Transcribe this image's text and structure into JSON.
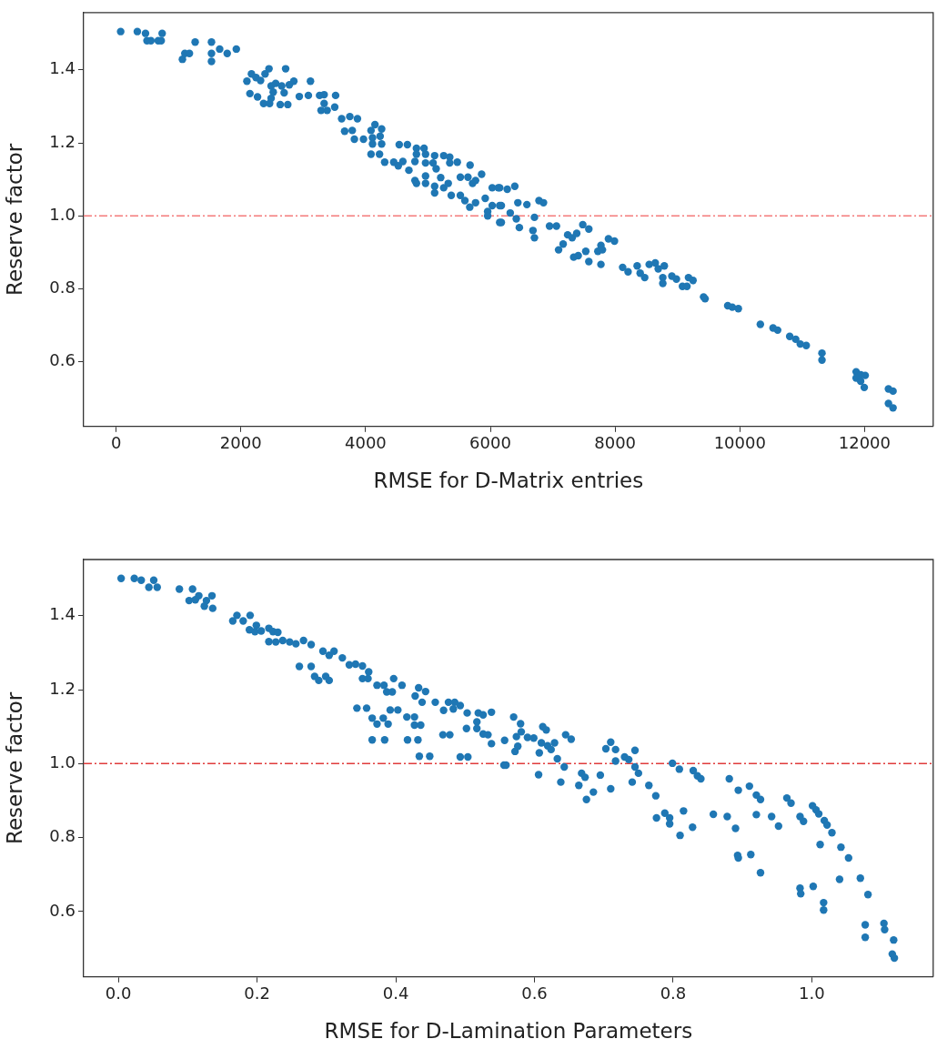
{
  "chart_data": [
    {
      "type": "scatter",
      "xlabel": "RMSE for D-Matrix entries",
      "ylabel": "Reserve factor",
      "marker": "circle",
      "color": "#1f77b4",
      "xlim": [
        -520,
        13100
      ],
      "ylim": [
        0.423,
        1.557
      ],
      "xticks": [
        0,
        2000,
        4000,
        6000,
        8000,
        10000,
        12000
      ],
      "yticks": [
        {
          "value": 0.6,
          "label": "0.6"
        },
        {
          "value": 0.8,
          "label": "0.8"
        },
        {
          "value": 1.0,
          "label": "1.0"
        },
        {
          "value": 1.2,
          "label": "1.2"
        },
        {
          "value": 1.4,
          "label": "1.4"
        }
      ],
      "ref_lines": [
        {
          "axis": "y",
          "value": 1.0,
          "color": "#f47a7a",
          "line_style": "dashed"
        }
      ],
      "x": [
        73,
        340,
        471,
        495,
        558,
        675,
        723,
        738,
        1267,
        1529,
        1529,
        1529,
        1063,
        1102,
        1175,
        1660,
        1781,
        1927,
        2097,
        2170,
        2243,
        2316,
        2388,
        2451,
        2718,
        2849,
        3116,
        2145,
        2267,
        2364,
        2485,
        2519,
        2485,
        2558,
        2655,
        2777,
        2694,
        2461,
        2631,
        2752,
        2937,
        3082,
        3262,
        3335,
        3519,
        3286,
        3383,
        3335,
        3505,
        3616,
        3747,
        3869,
        3664,
        3786,
        3820,
        3966,
        4087,
        4150,
        4257,
        4111,
        4233,
        4111,
        4257,
        4087,
        4223,
        4306,
        4451,
        4524,
        4597,
        4694,
        4539,
        4670,
        4815,
        4937,
        4815,
        4961,
        4791,
        4961,
        4791,
        4815,
        4961,
        4961,
        5082,
        5107,
        5131,
        5204,
        5252,
        5349,
        5349,
        5470,
        5107,
        5107,
        5252,
        5325,
        5373,
        5519,
        5519,
        5641,
        5675,
        5592,
        5670,
        5763,
        5715,
        5763,
        5860,
        5918,
        5957,
        6030,
        6030,
        6127,
        6176,
        6176,
        5957,
        6150,
        6271,
        6392,
        6150,
        6319,
        6416,
        6150,
        6465,
        6441,
        6586,
        6707,
        6683,
        6707,
        6780,
        6852,
        6949,
        7060,
        7094,
        7167,
        7240,
        7312,
        7336,
        7409,
        7385,
        7482,
        7579,
        7530,
        7579,
        7724,
        7773,
        7797,
        7773,
        7894,
        7990,
        8121,
        8208,
        8354,
        8402,
        8475,
        8547,
        8644,
        8692,
        8789,
        8765,
        8765,
        8910,
        8983,
        9080,
        9152,
        9177,
        9249,
        9419,
        9443,
        9806,
        9879,
        9976,
        10329,
        10533,
        10606,
        10800,
        10896,
        10969,
        11065,
        11317,
        11317,
        11865,
        11937,
        12010,
        11865,
        11937,
        11995,
        12383,
        12456,
        12383,
        12456
      ],
      "values": [
        1.505,
        1.505,
        1.5,
        1.48,
        1.48,
        1.48,
        1.48,
        1.5,
        1.476,
        1.476,
        1.445,
        1.423,
        1.429,
        1.445,
        1.445,
        1.457,
        1.445,
        1.457,
        1.369,
        1.389,
        1.379,
        1.371,
        1.389,
        1.403,
        1.403,
        1.369,
        1.369,
        1.335,
        1.326,
        1.308,
        1.322,
        1.339,
        1.356,
        1.363,
        1.356,
        1.359,
        1.337,
        1.308,
        1.305,
        1.305,
        1.327,
        1.33,
        1.33,
        1.332,
        1.33,
        1.289,
        1.289,
        1.308,
        1.298,
        1.266,
        1.272,
        1.266,
        1.232,
        1.234,
        1.21,
        1.21,
        1.234,
        1.25,
        1.238,
        1.214,
        1.218,
        1.197,
        1.197,
        1.169,
        1.169,
        1.147,
        1.147,
        1.137,
        1.149,
        1.125,
        1.195,
        1.195,
        1.185,
        1.185,
        1.169,
        1.169,
        1.149,
        1.145,
        1.097,
        1.089,
        1.109,
        1.089,
        1.145,
        1.165,
        1.129,
        1.105,
        1.165,
        1.161,
        1.145,
        1.147,
        1.081,
        1.063,
        1.077,
        1.089,
        1.056,
        1.056,
        1.106,
        1.106,
        1.139,
        1.042,
        1.024,
        1.036,
        1.089,
        1.097,
        1.114,
        1.048,
        1.012,
        1.077,
        1.028,
        1.077,
        1.028,
        0.982,
        1.0,
        1.077,
        1.073,
        1.081,
        1.028,
        1.008,
        0.992,
        0.982,
        0.968,
        1.036,
        1.031,
        0.996,
        0.96,
        0.94,
        1.042,
        1.036,
        0.972,
        0.972,
        0.907,
        0.923,
        0.948,
        0.94,
        0.887,
        0.891,
        0.952,
        0.976,
        0.964,
        0.903,
        0.875,
        0.903,
        0.919,
        0.907,
        0.867,
        0.937,
        0.931,
        0.859,
        0.847,
        0.863,
        0.843,
        0.831,
        0.867,
        0.871,
        0.855,
        0.863,
        0.831,
        0.815,
        0.835,
        0.827,
        0.807,
        0.807,
        0.831,
        0.823,
        0.778,
        0.773,
        0.754,
        0.75,
        0.746,
        0.703,
        0.693,
        0.687,
        0.67,
        0.662,
        0.649,
        0.645,
        0.624,
        0.605,
        0.573,
        0.565,
        0.563,
        0.556,
        0.547,
        0.53,
        0.526,
        0.52,
        0.486,
        0.474
      ]
    },
    {
      "type": "scatter",
      "xlabel": "RMSE for D-Lamination Parameters",
      "ylabel": "Reserve factor",
      "marker": "circle",
      "color": "#1f77b4",
      "xlim": [
        -0.05,
        1.175
      ],
      "ylim": [
        0.423,
        1.552
      ],
      "xticks": [
        {
          "value": 0,
          "label": "0.0"
        },
        {
          "value": 0.2,
          "label": "0.2"
        },
        {
          "value": 0.4,
          "label": "0.4"
        },
        {
          "value": 0.6,
          "label": "0.6"
        },
        {
          "value": 0.8,
          "label": "0.8"
        },
        {
          "value": 1.0,
          "label": "1.0"
        }
      ],
      "yticks": [
        {
          "value": 0.6,
          "label": "0.6"
        },
        {
          "value": 0.8,
          "label": "0.8"
        },
        {
          "value": 1.0,
          "label": "1.0"
        },
        {
          "value": 1.2,
          "label": "1.2"
        },
        {
          "value": 1.4,
          "label": "1.4"
        }
      ],
      "ref_lines": [
        {
          "axis": "y",
          "value": 1.0,
          "color": "#e03c3c",
          "line_style": "dashed"
        }
      ],
      "x": [
        0.004,
        0.023,
        0.033,
        0.044,
        0.051,
        0.056,
        0.088,
        0.107,
        0.102,
        0.111,
        0.116,
        0.127,
        0.124,
        0.135,
        0.136,
        0.165,
        0.171,
        0.18,
        0.19,
        0.189,
        0.199,
        0.197,
        0.206,
        0.217,
        0.223,
        0.23,
        0.217,
        0.227,
        0.237,
        0.247,
        0.256,
        0.267,
        0.278,
        0.295,
        0.304,
        0.311,
        0.323,
        0.333,
        0.342,
        0.352,
        0.361,
        0.352,
        0.36,
        0.373,
        0.383,
        0.387,
        0.395,
        0.397,
        0.409,
        0.428,
        0.433,
        0.443,
        0.438,
        0.457,
        0.469,
        0.476,
        0.485,
        0.483,
        0.493,
        0.503,
        0.519,
        0.526,
        0.538,
        0.517,
        0.502,
        0.517,
        0.526,
        0.533,
        0.538,
        0.557,
        0.556,
        0.261,
        0.278,
        0.283,
        0.289,
        0.299,
        0.304,
        0.344,
        0.358,
        0.366,
        0.373,
        0.382,
        0.389,
        0.392,
        0.403,
        0.416,
        0.427,
        0.427,
        0.436,
        0.366,
        0.384,
        0.417,
        0.432,
        0.434,
        0.449,
        0.468,
        0.478,
        0.493,
        0.504,
        0.57,
        0.58,
        0.574,
        0.581,
        0.572,
        0.576,
        0.59,
        0.599,
        0.559,
        0.606,
        0.612,
        0.617,
        0.61,
        0.607,
        0.619,
        0.629,
        0.624,
        0.633,
        0.645,
        0.653,
        0.638,
        0.643,
        0.664,
        0.668,
        0.673,
        0.675,
        0.685,
        0.695,
        0.703,
        0.71,
        0.717,
        0.717,
        0.71,
        0.73,
        0.736,
        0.745,
        0.745,
        0.741,
        0.75,
        0.765,
        0.775,
        0.776,
        0.788,
        0.795,
        0.795,
        0.799,
        0.809,
        0.81,
        0.815,
        0.829,
        0.835,
        0.84,
        0.828,
        0.858,
        0.878,
        0.881,
        0.89,
        0.894,
        0.893,
        0.894,
        0.91,
        0.912,
        0.92,
        0.926,
        0.92,
        0.926,
        0.942,
        0.952,
        0.964,
        0.97,
        0.983,
        0.988,
        0.983,
        0.984,
        1.001,
        1.006,
        1.01,
        1.002,
        1.012,
        1.017,
        1.017,
        1.018,
        1.022,
        1.029,
        1.042,
        1.04,
        1.053,
        1.07,
        1.081,
        1.077,
        1.077,
        1.104,
        1.105,
        1.118,
        1.116,
        1.119
      ],
      "values": [
        1.501,
        1.501,
        1.496,
        1.477,
        1.496,
        1.477,
        1.472,
        1.472,
        1.441,
        1.443,
        1.454,
        1.441,
        1.426,
        1.454,
        1.42,
        1.386,
        1.401,
        1.386,
        1.401,
        1.362,
        1.374,
        1.357,
        1.359,
        1.366,
        1.357,
        1.355,
        1.33,
        1.329,
        1.333,
        1.329,
        1.324,
        1.333,
        1.322,
        1.304,
        1.293,
        1.304,
        1.286,
        1.267,
        1.269,
        1.264,
        1.248,
        1.23,
        1.23,
        1.212,
        1.212,
        1.194,
        1.194,
        1.23,
        1.212,
        1.183,
        1.205,
        1.195,
        1.166,
        1.166,
        1.144,
        1.166,
        1.166,
        1.148,
        1.157,
        1.137,
        1.137,
        1.132,
        1.139,
        1.113,
        1.095,
        1.095,
        1.08,
        1.078,
        1.054,
        1.063,
        0.996,
        1.263,
        1.263,
        1.236,
        1.225,
        1.236,
        1.225,
        1.15,
        1.15,
        1.123,
        1.107,
        1.123,
        1.107,
        1.145,
        1.145,
        1.126,
        1.126,
        1.104,
        1.104,
        1.064,
        1.064,
        1.064,
        1.064,
        1.02,
        1.02,
        1.078,
        1.078,
        1.018,
        1.018,
        1.126,
        1.108,
        1.073,
        1.086,
        1.033,
        1.047,
        1.071,
        1.069,
        0.996,
        0.97,
        1.1,
        1.091,
        1.056,
        1.029,
        1.048,
        1.056,
        1.038,
        1.013,
        1.078,
        1.066,
        0.95,
        0.991,
        0.941,
        0.974,
        0.963,
        0.903,
        0.923,
        0.969,
        1.04,
        1.058,
        1.038,
        1.007,
        0.932,
        1.018,
        1.011,
        1.036,
        0.991,
        0.95,
        0.974,
        0.941,
        0.913,
        0.853,
        0.866,
        0.853,
        0.837,
        1.001,
        0.985,
        0.806,
        0.872,
        0.981,
        0.967,
        0.959,
        0.828,
        0.863,
        0.857,
        0.959,
        0.825,
        0.928,
        0.752,
        0.745,
        0.939,
        0.754,
        0.915,
        0.903,
        0.862,
        0.705,
        0.857,
        0.831,
        0.907,
        0.893,
        0.857,
        0.844,
        0.663,
        0.648,
        0.886,
        0.875,
        0.864,
        0.668,
        0.781,
        0.624,
        0.604,
        0.846,
        0.834,
        0.813,
        0.774,
        0.687,
        0.745,
        0.69,
        0.646,
        0.564,
        0.53,
        0.568,
        0.551,
        0.523,
        0.485,
        0.474
      ]
    }
  ]
}
